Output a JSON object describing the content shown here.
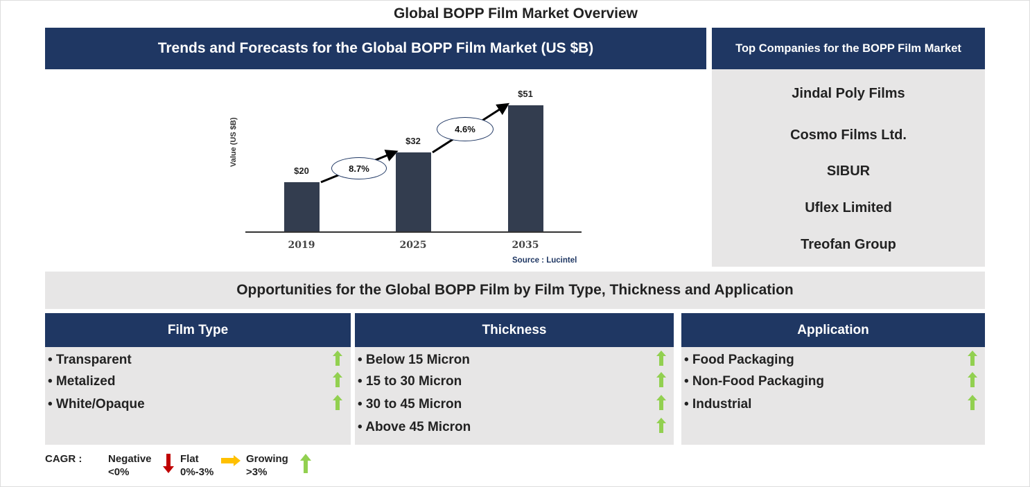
{
  "title": "Global BOPP Film Market Overview",
  "chart_header": "Trends and Forecasts for the Global BOPP Film Market (US $B)",
  "companies_header": "Top Companies for the BOPP Film Market",
  "companies": [
    "Jindal Poly Films",
    "Cosmo Films Ltd.",
    "SIBUR",
    "Uflex Limited",
    "Treofan Group"
  ],
  "chart_data": {
    "type": "bar",
    "categories": [
      "2019",
      "2025",
      "2035"
    ],
    "values": [
      20,
      32,
      51
    ],
    "value_labels": [
      "$20",
      "$32",
      "$51"
    ],
    "ylabel": "Value (US $B)",
    "xlabel": "",
    "ylim": [
      0,
      51
    ],
    "cagr": [
      {
        "from": "2019",
        "to": "2025",
        "label": "8.7%"
      },
      {
        "from": "2025",
        "to": "2035",
        "label": "4.6%"
      }
    ],
    "source": "Source : Lucintel"
  },
  "opportunities_header": "Opportunities for the Global BOPP Film by Film Type, Thickness and Application",
  "columns": [
    {
      "header": "Film Type",
      "items": [
        "• Transparent",
        "• Metalized",
        "• White/Opaque"
      ],
      "trend": [
        "growing",
        "growing",
        "growing"
      ]
    },
    {
      "header": "Thickness",
      "items": [
        "• Below 15 Micron",
        "• 15 to 30 Micron",
        "• 30 to 45 Micron",
        "• Above 45 Micron"
      ],
      "trend": [
        "growing",
        "growing",
        "growing",
        "growing"
      ]
    },
    {
      "header": "Application",
      "items": [
        "• Food Packaging",
        "• Non-Food Packaging",
        "• Industrial"
      ],
      "trend": [
        "growing",
        "growing",
        "growing"
      ]
    }
  ],
  "legend": {
    "label": "CAGR :",
    "negative": "Negative",
    "negative_range": "<0%",
    "flat": "Flat",
    "flat_range": "0%-3%",
    "growing": "Growing",
    "growing_range": ">3%"
  },
  "colors": {
    "navy": "#1f3763",
    "bar": "#333d4f",
    "panel": "#e7e6e6",
    "green": "#92d050",
    "red": "#c00000",
    "yellow": "#ffc000"
  }
}
